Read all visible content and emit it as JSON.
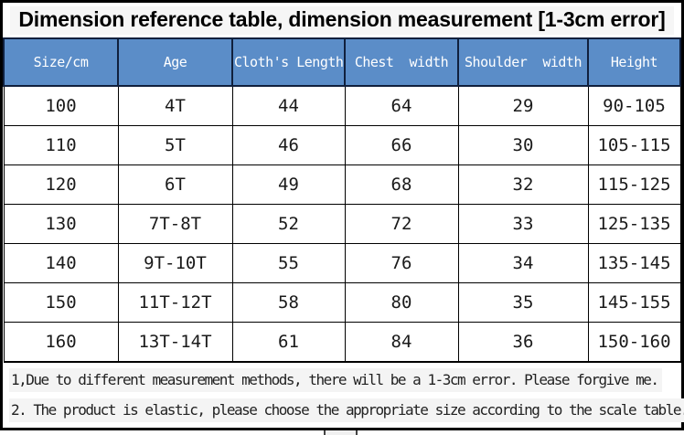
{
  "title": "Dimension reference table, dimension measurement [1-3cm error]",
  "colors": {
    "header_bg": "#5b8dc8",
    "header_text": "#ffffff",
    "grid_border": "#000000",
    "note_highlight": "#f4f4f4"
  },
  "chart_data": {
    "type": "table",
    "title": "Dimension reference table, dimension measurement [1-3cm error]",
    "columns": [
      "Size/cm",
      "Age",
      "Cloth's Length",
      "Chest  width",
      "Shoulder  width",
      "Height"
    ],
    "rows": [
      [
        "100",
        "4T",
        "44",
        "64",
        "29",
        "90-105"
      ],
      [
        "110",
        "5T",
        "46",
        "66",
        "30",
        "105-115"
      ],
      [
        "120",
        "6T",
        "49",
        "68",
        "32",
        "115-125"
      ],
      [
        "130",
        "7T-8T",
        "52",
        "72",
        "33",
        "125-135"
      ],
      [
        "140",
        "9T-10T",
        "55",
        "76",
        "34",
        "135-145"
      ],
      [
        "150",
        "11T-12T",
        "58",
        "80",
        "35",
        "145-155"
      ],
      [
        "160",
        "13T-14T",
        "61",
        "84",
        "36",
        "150-160"
      ]
    ],
    "units": "cm",
    "error_margin": "1-3cm"
  },
  "notes": [
    "1,Due to different measurement methods, there will be a 1-3cm error. Please forgive me.",
    "2. The product is elastic, please choose the appropriate size according to the scale table."
  ]
}
